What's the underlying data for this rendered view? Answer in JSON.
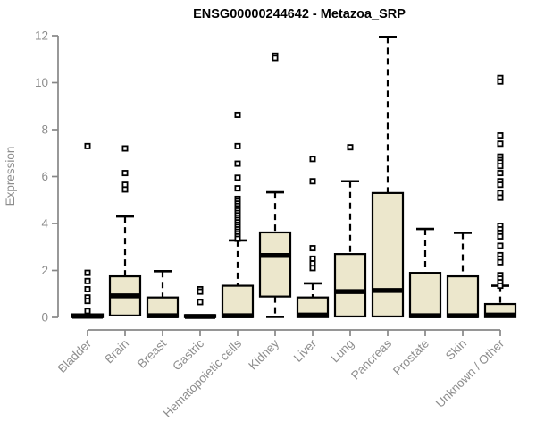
{
  "chart_data": {
    "type": "boxplot",
    "title": "ENSG00000244642 - Metazoa_SRP",
    "ylabel": "Expression",
    "xlabel": "",
    "ylim": [
      0,
      12
    ],
    "yticks": [
      0,
      2,
      4,
      6,
      8,
      10,
      12
    ],
    "grid": false,
    "legend": "none",
    "colors": {
      "box_fill": "#ece7cc",
      "box_stroke": "#000000",
      "axis": "#878787",
      "tick_label": "#8d8d8d",
      "title": "#000000",
      "background": "#ffffff"
    },
    "categories": [
      "Bladder",
      "Brain",
      "Breast",
      "Gastric",
      "Hematopoietic cells",
      "Kidney",
      "Liver",
      "Lung",
      "Pancreas",
      "Prostate",
      "Skin",
      "Unknown / Other"
    ],
    "boxes": [
      {
        "label": "Bladder",
        "whisker_low": 0,
        "q1": 0.01,
        "median": 0.05,
        "q3": 0.13,
        "whisker_high": 0.13,
        "outliers": [
          7.3,
          1.9,
          1.55,
          1.2,
          0.85,
          0.7,
          0.27
        ]
      },
      {
        "label": "Brain",
        "whisker_low": 0.08,
        "q1": 0.08,
        "median": 0.92,
        "q3": 1.75,
        "whisker_high": 4.3,
        "outliers": [
          7.2,
          6.15,
          5.65,
          5.45
        ]
      },
      {
        "label": "Breast",
        "whisker_low": 0.01,
        "q1": 0.01,
        "median": 0.07,
        "q3": 0.85,
        "whisker_high": 1.97,
        "outliers": []
      },
      {
        "label": "Gastric",
        "whisker_low": 0,
        "q1": 0.01,
        "median": 0.04,
        "q3": 0.1,
        "whisker_high": 0.1,
        "outliers": [
          1.2,
          1.1,
          0.65
        ]
      },
      {
        "label": "Hematopoietic cells",
        "whisker_low": 0,
        "q1": 0.01,
        "median": 0.07,
        "q3": 1.35,
        "whisker_high": 3.28,
        "outliers": [
          8.63,
          7.3,
          6.55,
          5.95,
          5.5,
          5.05,
          4.95,
          4.85,
          4.75,
          4.65,
          4.55,
          4.45,
          4.35,
          4.25,
          4.15,
          4.05,
          3.95,
          3.85,
          3.75,
          3.65,
          3.55,
          3.45,
          3.35
        ]
      },
      {
        "label": "Kidney",
        "whisker_low": 0.02,
        "q1": 0.89,
        "median": 2.64,
        "q3": 3.62,
        "whisker_high": 5.33,
        "outliers": [
          11.15,
          11.05
        ]
      },
      {
        "label": "Liver",
        "whisker_low": 0.01,
        "q1": 0.01,
        "median": 0.1,
        "q3": 0.85,
        "whisker_high": 1.45,
        "outliers": [
          6.75,
          5.8,
          2.95,
          2.5,
          2.3,
          2.1
        ]
      },
      {
        "label": "Lung",
        "whisker_low": 0.04,
        "q1": 0.04,
        "median": 1.1,
        "q3": 2.7,
        "whisker_high": 5.8,
        "outliers": [
          7.25
        ]
      },
      {
        "label": "Pancreas",
        "whisker_low": 0.04,
        "q1": 0.04,
        "median": 1.15,
        "q3": 5.3,
        "whisker_high": 11.95,
        "outliers": []
      },
      {
        "label": "Prostate",
        "whisker_low": 0.01,
        "q1": 0.01,
        "median": 0.07,
        "q3": 1.9,
        "whisker_high": 3.77,
        "outliers": []
      },
      {
        "label": "Skin",
        "whisker_low": 0.01,
        "q1": 0.01,
        "median": 0.07,
        "q3": 1.75,
        "whisker_high": 3.6,
        "outliers": []
      },
      {
        "label": "Unknown / Other",
        "whisker_low": 0.01,
        "q1": 0.01,
        "median": 0.1,
        "q3": 0.57,
        "whisker_high": 1.35,
        "outliers": [
          10.2,
          10.05,
          7.75,
          7.4,
          6.85,
          6.7,
          6.6,
          6.45,
          6.15,
          5.8,
          5.65,
          5.3,
          5.1,
          3.9,
          3.75,
          3.6,
          3.45,
          3.05,
          2.65,
          2.5,
          2.35,
          1.8,
          1.65,
          1.5,
          1.35
        ]
      }
    ]
  }
}
